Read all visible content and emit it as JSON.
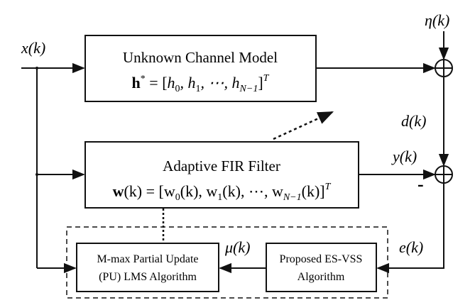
{
  "blocks": {
    "unknown_channel": {
      "title": "Unknown Channel Model",
      "equation_lhs": "h",
      "equation_sup": "*",
      "equation_rhs_open": " = [",
      "equation_terms": [
        "h",
        "0",
        ", h",
        "1",
        ", ⋯, h",
        "N−1"
      ],
      "equation_close": "]",
      "equation_transpose": "T"
    },
    "adaptive_filter": {
      "title": "Adaptive FIR Filter",
      "equation_lhs": "w",
      "equation_mid": "(k) = [w",
      "w0_sub": "0",
      "mid2": "(k), w",
      "w1_sub": "1",
      "mid3": "(k), ⋯, w",
      "wn_sub": "N−1",
      "mid4": "(k)]",
      "equation_transpose": "T"
    },
    "pu_lms": {
      "line1": "M-max Partial Update",
      "line2": "(PU) LMS Algorithm"
    },
    "es_vss": {
      "line1": "Proposed ES-VSS",
      "line2": "Algorithm"
    }
  },
  "signals": {
    "input": "x(k)",
    "noise": "η(k)",
    "desired": "d(k)",
    "output": "y(k)",
    "error": "e(k)",
    "step_size": "μ(k)",
    "minus_sign": "-"
  },
  "colors": {
    "stroke": "#111111",
    "background": "#ffffff"
  }
}
